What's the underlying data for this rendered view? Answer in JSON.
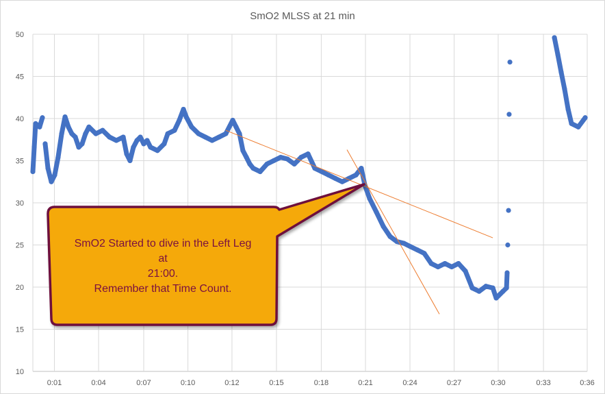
{
  "chart_data": {
    "type": "scatter",
    "title": "SmO2  MLSS at 21 min",
    "xlabel": "",
    "ylabel": "",
    "xlim": [
      0,
      36
    ],
    "ylim": [
      10,
      50
    ],
    "grid": true,
    "y_ticks": [
      10,
      15,
      20,
      25,
      30,
      35,
      40,
      45,
      50
    ],
    "x_ticks": [
      {
        "value": 1.4,
        "label": "0:01"
      },
      {
        "value": 4.27,
        "label": "0:04"
      },
      {
        "value": 7.2,
        "label": "0:07"
      },
      {
        "value": 10.07,
        "label": "0:10"
      },
      {
        "value": 12.93,
        "label": "0:12"
      },
      {
        "value": 15.82,
        "label": "0:15"
      },
      {
        "value": 18.73,
        "label": "0:18"
      },
      {
        "value": 21.6,
        "label": "0:21"
      },
      {
        "value": 24.49,
        "label": "0:24"
      },
      {
        "value": 27.36,
        "label": "0:27"
      },
      {
        "value": 30.22,
        "label": "0:30"
      },
      {
        "value": 33.16,
        "label": "0:33"
      },
      {
        "value": 36.0,
        "label": "0:36"
      }
    ],
    "colors": {
      "points": "#4472C4",
      "trendline": "#ED7D31",
      "grid": "#D9D9D9",
      "callout_fill": "#F5A90A",
      "callout_border": "#6E0F3C",
      "callout_text": "#7A1040"
    },
    "series": [
      {
        "points": [
          [
            0.0,
            33.7
          ],
          [
            0.09,
            36.6
          ],
          [
            0.18,
            39.4
          ],
          [
            0.44,
            39.0
          ],
          [
            0.62,
            40.1
          ],
          [
            0.8,
            37.0
          ],
          [
            0.98,
            34.1
          ],
          [
            1.2,
            32.5
          ],
          [
            1.42,
            33.3
          ],
          [
            1.64,
            35.4
          ],
          [
            1.87,
            38.2
          ],
          [
            2.09,
            40.2
          ],
          [
            2.31,
            39.0
          ],
          [
            2.53,
            38.2
          ],
          [
            2.76,
            37.8
          ],
          [
            2.98,
            36.6
          ],
          [
            3.2,
            37.0
          ],
          [
            3.42,
            38.2
          ],
          [
            3.64,
            39.0
          ],
          [
            4.09,
            38.2
          ],
          [
            4.53,
            38.6
          ],
          [
            4.98,
            37.8
          ],
          [
            5.42,
            37.4
          ],
          [
            5.87,
            37.8
          ],
          [
            6.09,
            35.8
          ],
          [
            6.31,
            35.0
          ],
          [
            6.53,
            36.6
          ],
          [
            6.76,
            37.4
          ],
          [
            6.98,
            37.8
          ],
          [
            7.2,
            37.0
          ],
          [
            7.42,
            37.4
          ],
          [
            7.64,
            36.6
          ],
          [
            8.09,
            36.2
          ],
          [
            8.53,
            37.0
          ],
          [
            8.76,
            38.2
          ],
          [
            9.2,
            38.6
          ],
          [
            9.51,
            39.8
          ],
          [
            9.78,
            41.1
          ],
          [
            9.96,
            40.2
          ],
          [
            10.31,
            39.0
          ],
          [
            10.76,
            38.2
          ],
          [
            11.2,
            37.8
          ],
          [
            11.64,
            37.4
          ],
          [
            12.09,
            37.8
          ],
          [
            12.53,
            38.2
          ],
          [
            12.98,
            39.8
          ],
          [
            13.2,
            39.0
          ],
          [
            13.42,
            38.2
          ],
          [
            13.64,
            36.2
          ],
          [
            13.87,
            35.4
          ],
          [
            14.09,
            34.6
          ],
          [
            14.31,
            34.1
          ],
          [
            14.76,
            33.7
          ],
          [
            15.2,
            34.6
          ],
          [
            15.64,
            35.0
          ],
          [
            16.09,
            35.4
          ],
          [
            16.53,
            35.2
          ],
          [
            16.98,
            34.6
          ],
          [
            17.42,
            35.4
          ],
          [
            17.87,
            35.8
          ],
          [
            18.31,
            34.1
          ],
          [
            18.76,
            33.7
          ],
          [
            19.2,
            33.3
          ],
          [
            19.64,
            32.9
          ],
          [
            20.09,
            32.5
          ],
          [
            20.53,
            32.9
          ],
          [
            20.98,
            33.3
          ],
          [
            21.33,
            34.1
          ],
          [
            21.56,
            32.1
          ],
          [
            21.87,
            30.5
          ],
          [
            22.31,
            28.9
          ],
          [
            22.76,
            27.2
          ],
          [
            23.2,
            26.0
          ],
          [
            23.64,
            25.4
          ],
          [
            24.09,
            25.2
          ],
          [
            24.53,
            24.8
          ],
          [
            24.98,
            24.4
          ],
          [
            25.42,
            24.0
          ],
          [
            25.87,
            22.8
          ],
          [
            26.31,
            22.4
          ],
          [
            26.76,
            22.8
          ],
          [
            27.2,
            22.4
          ],
          [
            27.64,
            22.8
          ],
          [
            28.09,
            21.9
          ],
          [
            28.53,
            19.9
          ],
          [
            28.98,
            19.5
          ],
          [
            29.42,
            20.1
          ],
          [
            29.87,
            19.9
          ],
          [
            30.09,
            18.7
          ],
          [
            30.53,
            19.5
          ],
          [
            30.76,
            19.9
          ],
          [
            30.8,
            21.7
          ],
          [
            30.84,
            25.0
          ],
          [
            30.89,
            29.1
          ],
          [
            30.93,
            40.5
          ],
          [
            30.98,
            46.7
          ],
          [
            33.87,
            49.6
          ],
          [
            34.09,
            47.6
          ],
          [
            34.31,
            45.5
          ],
          [
            34.53,
            43.5
          ],
          [
            34.76,
            41.1
          ],
          [
            34.98,
            39.4
          ],
          [
            35.42,
            39.0
          ],
          [
            35.87,
            40.1
          ]
        ]
      }
    ],
    "trendlines": [
      {
        "from": [
          12.53,
          38.6
        ],
        "to": [
          29.87,
          25.85
        ]
      },
      {
        "from": [
          20.4,
          36.3
        ],
        "to": [
          26.4,
          16.8
        ]
      }
    ],
    "annotation": {
      "lines": [
        "SmO2 Started to dive in the Left Leg",
        "at",
        "21:00.",
        "Remember that Time Count."
      ],
      "points_to": [
        21.6,
        32.2
      ]
    }
  }
}
